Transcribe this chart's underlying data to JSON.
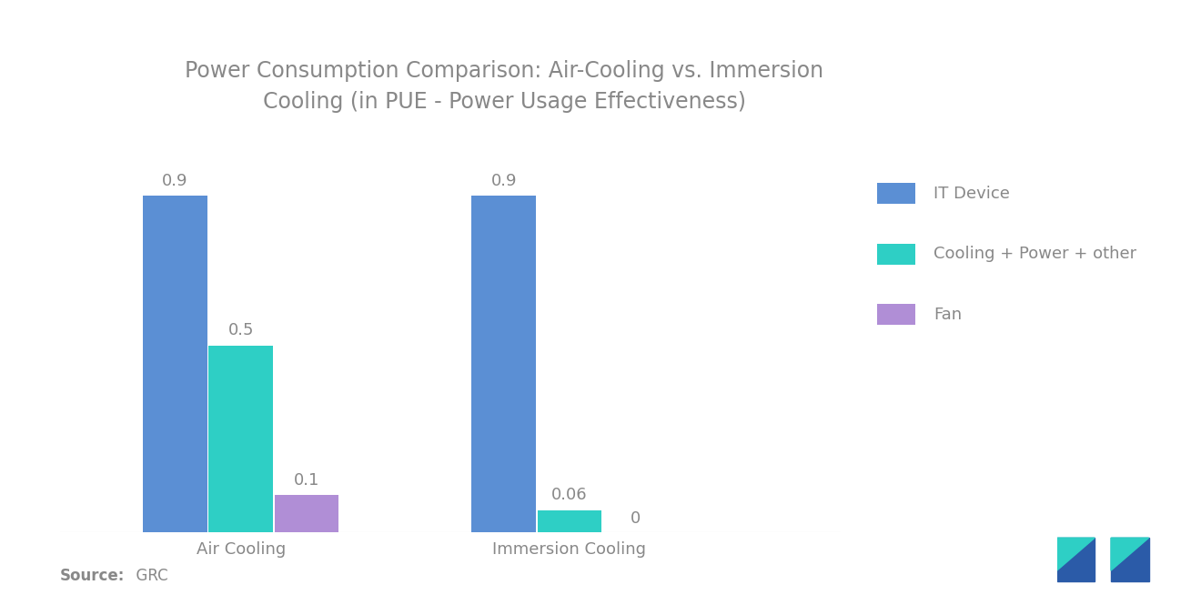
{
  "title": "Power Consumption Comparison: Air-Cooling vs. Immersion\nCooling (in PUE - Power Usage Effectiveness)",
  "groups": [
    "Air Cooling",
    "Immersion Cooling"
  ],
  "categories": [
    "IT Device",
    "Cooling + Power + other",
    "Fan"
  ],
  "colors": [
    "#5B8FD4",
    "#2ECFC5",
    "#B08ED6"
  ],
  "values": {
    "Air Cooling": [
      0.9,
      0.5,
      0.1
    ],
    "Immersion Cooling": [
      0.9,
      0.06,
      0.0
    ]
  },
  "bar_labels": {
    "Air Cooling": [
      "0.9",
      "0.5",
      "0.1"
    ],
    "Immersion Cooling": [
      "0.9",
      "0.06",
      "0"
    ]
  },
  "source_bold": "Source:",
  "source_rest": "  GRC",
  "background_color": "#FFFFFF",
  "text_color": "#888888",
  "ylim": [
    0,
    1.1
  ],
  "title_fontsize": 17,
  "tick_fontsize": 13,
  "legend_fontsize": 13,
  "source_fontsize": 12,
  "bar_width": 0.08,
  "group_positions": [
    0.22,
    0.62
  ],
  "xlim": [
    0.0,
    0.95
  ]
}
